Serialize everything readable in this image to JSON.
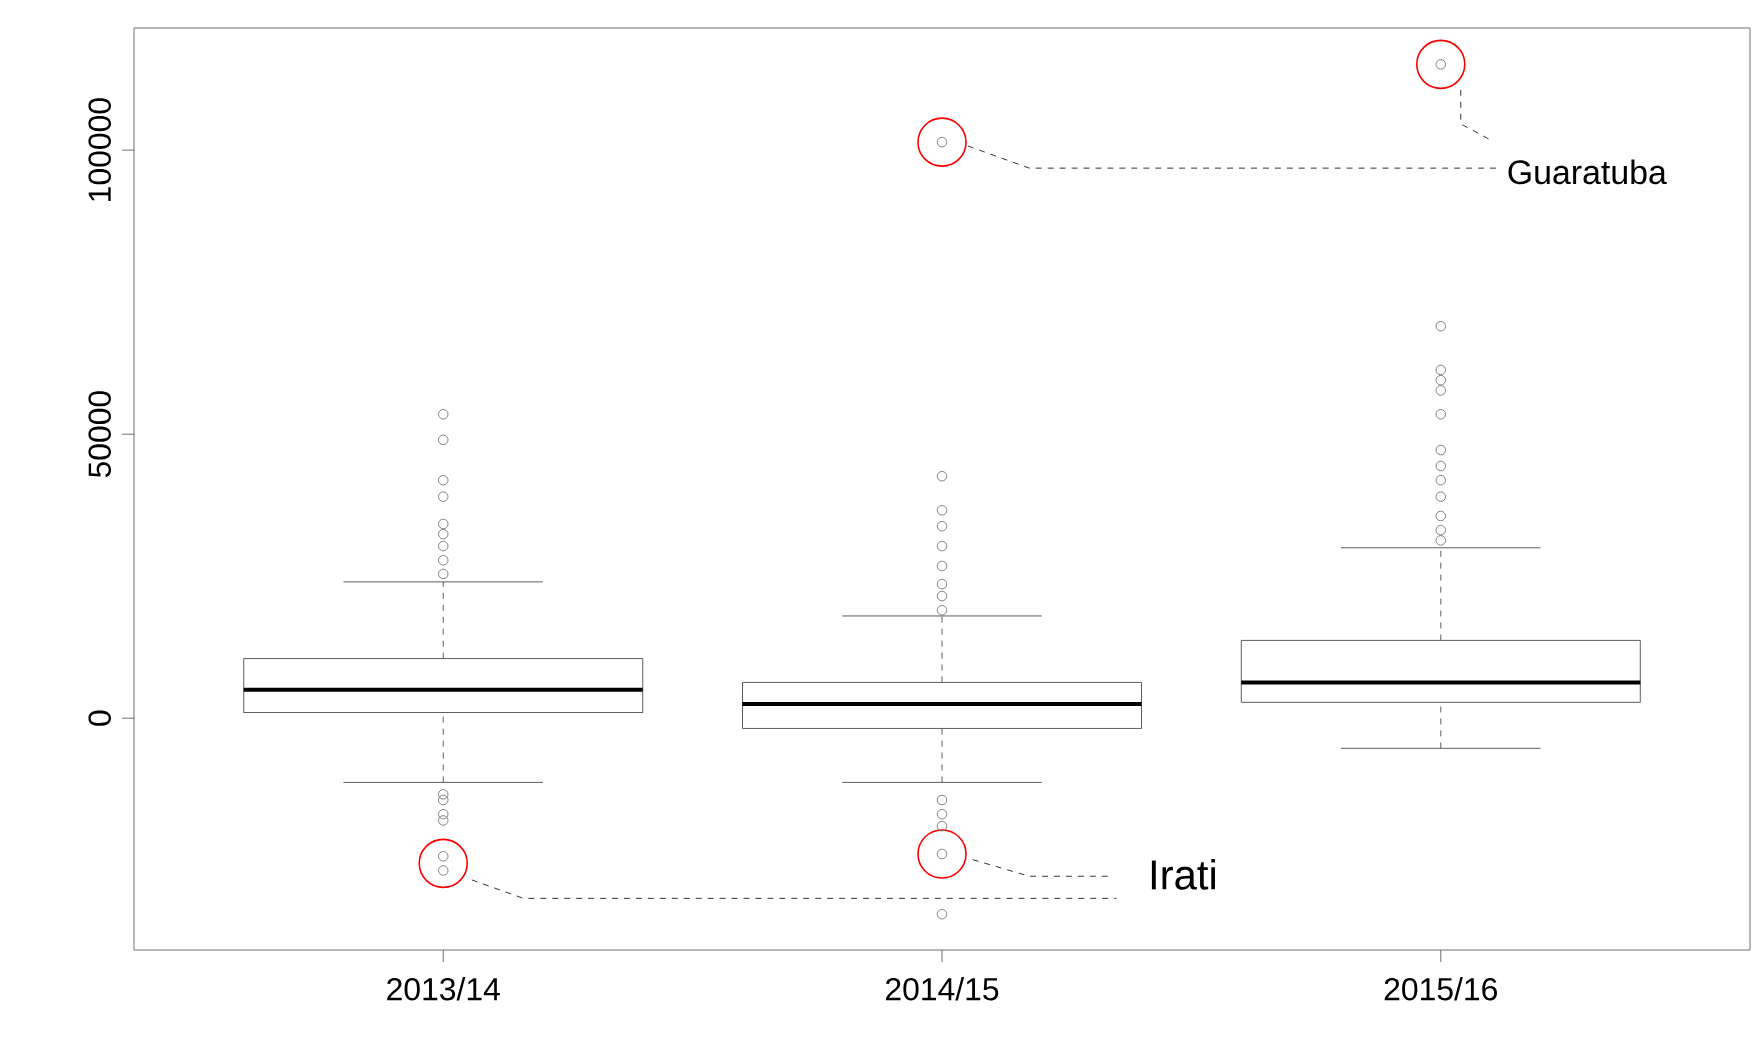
{
  "chart_data": {
    "type": "box",
    "categories": [
      "2013/14",
      "2014/15",
      "2015/16"
    ],
    "boxes": [
      {
        "low": -11300,
        "q1": 1000,
        "median": 5000,
        "q3": 10500,
        "high": 24000,
        "outliers": [
          53500,
          49000,
          41900,
          39000,
          34200,
          32400,
          30300,
          27800,
          25400,
          -13400,
          -14400,
          -16900,
          -18000,
          -24300,
          -26800
        ]
      },
      {
        "low": -11300,
        "q1": -1800,
        "median": 2500,
        "q3": 6300,
        "high": 18000,
        "outliers": [
          101400,
          42600,
          36600,
          33800,
          30300,
          26800,
          23600,
          21500,
          19000,
          -14400,
          -16900,
          -19000,
          -23900,
          -34500
        ]
      },
      {
        "low": -5300,
        "q1": 2800,
        "median": 6300,
        "q3": 13700,
        "high": 30000,
        "outliers": [
          115100,
          69000,
          61300,
          59500,
          57700,
          53500,
          47200,
          44400,
          41900,
          39000,
          35600,
          33100,
          31300
        ]
      }
    ],
    "ylim": [
      -40800,
      121500
    ],
    "yticks": [
      0,
      50000,
      100000
    ],
    "grid": false,
    "annotations": [
      "Guaratuba",
      "Irati"
    ]
  }
}
